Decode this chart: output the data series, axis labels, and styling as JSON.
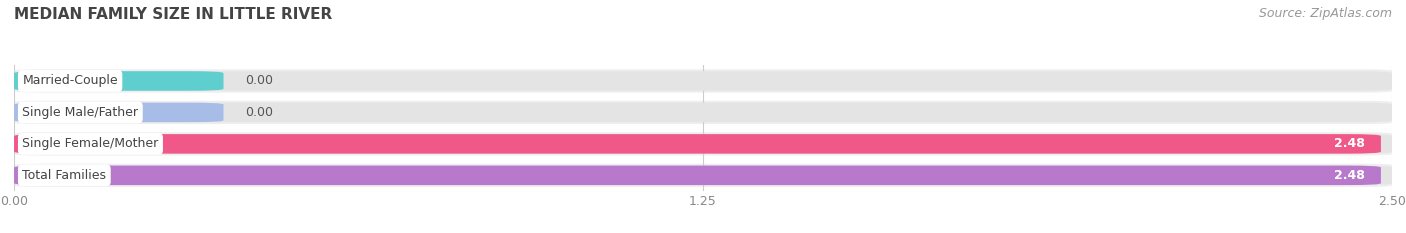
{
  "title": "MEDIAN FAMILY SIZE IN LITTLE RIVER",
  "source": "Source: ZipAtlas.com",
  "categories": [
    "Married-Couple",
    "Single Male/Father",
    "Single Female/Mother",
    "Total Families"
  ],
  "values": [
    0.0,
    0.0,
    2.48,
    2.48
  ],
  "bar_colors": [
    "#5ecece",
    "#a8bce8",
    "#f0588a",
    "#b878cc"
  ],
  "background_color": "#f7f7f7",
  "bar_bg_color": "#e4e4e4",
  "row_bg_color": "#eeeeee",
  "xlim": [
    0,
    2.5
  ],
  "xticks": [
    0.0,
    1.25,
    2.5
  ],
  "xtick_labels": [
    "0.00",
    "1.25",
    "2.50"
  ],
  "title_fontsize": 11,
  "label_fontsize": 9,
  "value_fontsize": 9,
  "source_fontsize": 9,
  "bar_height": 0.62,
  "min_bar_display": 0.38
}
